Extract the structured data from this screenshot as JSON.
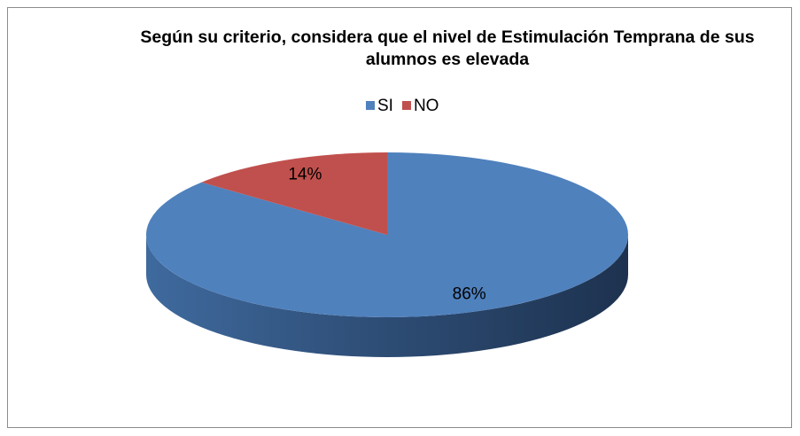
{
  "chart_data": {
    "type": "pie",
    "title": "Según su criterio, considera que el nivel de Estimulación Temprana de sus alumnos es elevada",
    "categories": [
      "SI",
      "NO"
    ],
    "values": [
      86,
      14
    ],
    "value_labels": [
      "86%",
      "14%"
    ],
    "colors": [
      "#4f81bd",
      "#c0504d"
    ],
    "legend": "top"
  }
}
